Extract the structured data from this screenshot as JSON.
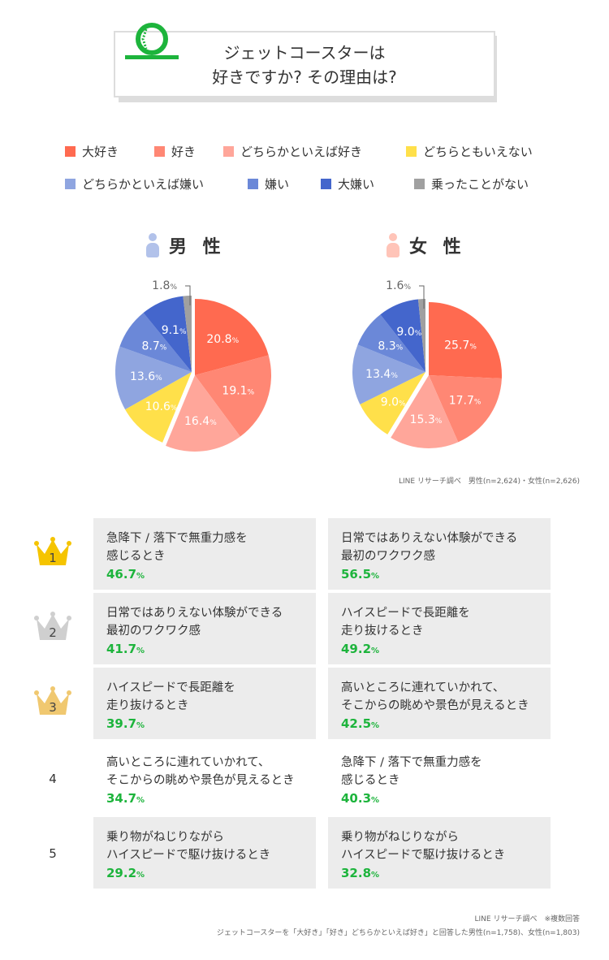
{
  "title": {
    "line1": "ジェットコースターは",
    "line2": "好きですか? その理由は?"
  },
  "legend": [
    {
      "label": "大好き",
      "color": "#ff6a50"
    },
    {
      "label": "好き",
      "color": "#ff8774"
    },
    {
      "label": "どちらかといえば好き",
      "color": "#ffa69a"
    },
    {
      "label": "どちらともいえない",
      "color": "#ffe04a"
    },
    {
      "label": "どちらかといえば嫌い",
      "color": "#8fa5e0"
    },
    {
      "label": "嫌い",
      "color": "#6b88d8"
    },
    {
      "label": "大嫌い",
      "color": "#4466cc"
    },
    {
      "label": "乗ったことがない",
      "color": "#a0a0a0"
    }
  ],
  "chart_data": [
    {
      "type": "pie",
      "title": "男 性",
      "values": [
        20.8,
        19.1,
        16.4,
        10.6,
        13.6,
        8.7,
        9.1,
        1.8
      ],
      "labels": [
        "20.8",
        "19.1",
        "16.4",
        "10.6",
        "13.6",
        "8.7",
        "9.1",
        "1.8"
      ]
    },
    {
      "type": "pie",
      "title": "女 性",
      "values": [
        25.7,
        17.7,
        15.3,
        9.0,
        13.4,
        8.3,
        9.0,
        1.6
      ],
      "labels": [
        "25.7",
        "17.7",
        "15.3",
        "9.0",
        "13.4",
        "8.3",
        "9.0",
        "1.6"
      ]
    }
  ],
  "source1": "LINE リサーチ調べ　男性(n=2,624)・女性(n=2,626)",
  "ranking": [
    {
      "rank": "1",
      "male": {
        "l1": "急降下 / 落下で無重力感を",
        "l2": "感じるとき",
        "pct": "46.7"
      },
      "female": {
        "l1": "日常ではありえない体験ができる",
        "l2": "最初のワクワク感",
        "pct": "56.5"
      }
    },
    {
      "rank": "2",
      "male": {
        "l1": "日常ではありえない体験ができる",
        "l2": "最初のワクワク感",
        "pct": "41.7"
      },
      "female": {
        "l1": "ハイスピードで長距離を",
        "l2": "走り抜けるとき",
        "pct": "49.2"
      }
    },
    {
      "rank": "3",
      "male": {
        "l1": "ハイスピードで長距離を",
        "l2": "走り抜けるとき",
        "pct": "39.7"
      },
      "female": {
        "l1": "高いところに連れていかれて、",
        "l2": "そこからの眺めや景色が見えるとき",
        "pct": "42.5"
      }
    },
    {
      "rank": "4",
      "male": {
        "l1": "高いところに連れていかれて、",
        "l2": "そこからの眺めや景色が見えるとき",
        "pct": "34.7"
      },
      "female": {
        "l1": "急降下 / 落下で無重力感を",
        "l2": "感じるとき",
        "pct": "40.3"
      }
    },
    {
      "rank": "5",
      "male": {
        "l1": "乗り物がねじりながら",
        "l2": "ハイスピードで駆け抜けるとき",
        "pct": "29.2"
      },
      "female": {
        "l1": "乗り物がねじりながら",
        "l2": "ハイスピードで駆け抜けるとき",
        "pct": "32.8"
      }
    }
  ],
  "pct_unit": "%",
  "foot1": "LINE リサーチ調べ　※複数回答",
  "foot2": "ジェットコースターを「大好き」「好き」どちらかといえば好き」と回答した男性(n=1,758)、女性(n=1,803)"
}
